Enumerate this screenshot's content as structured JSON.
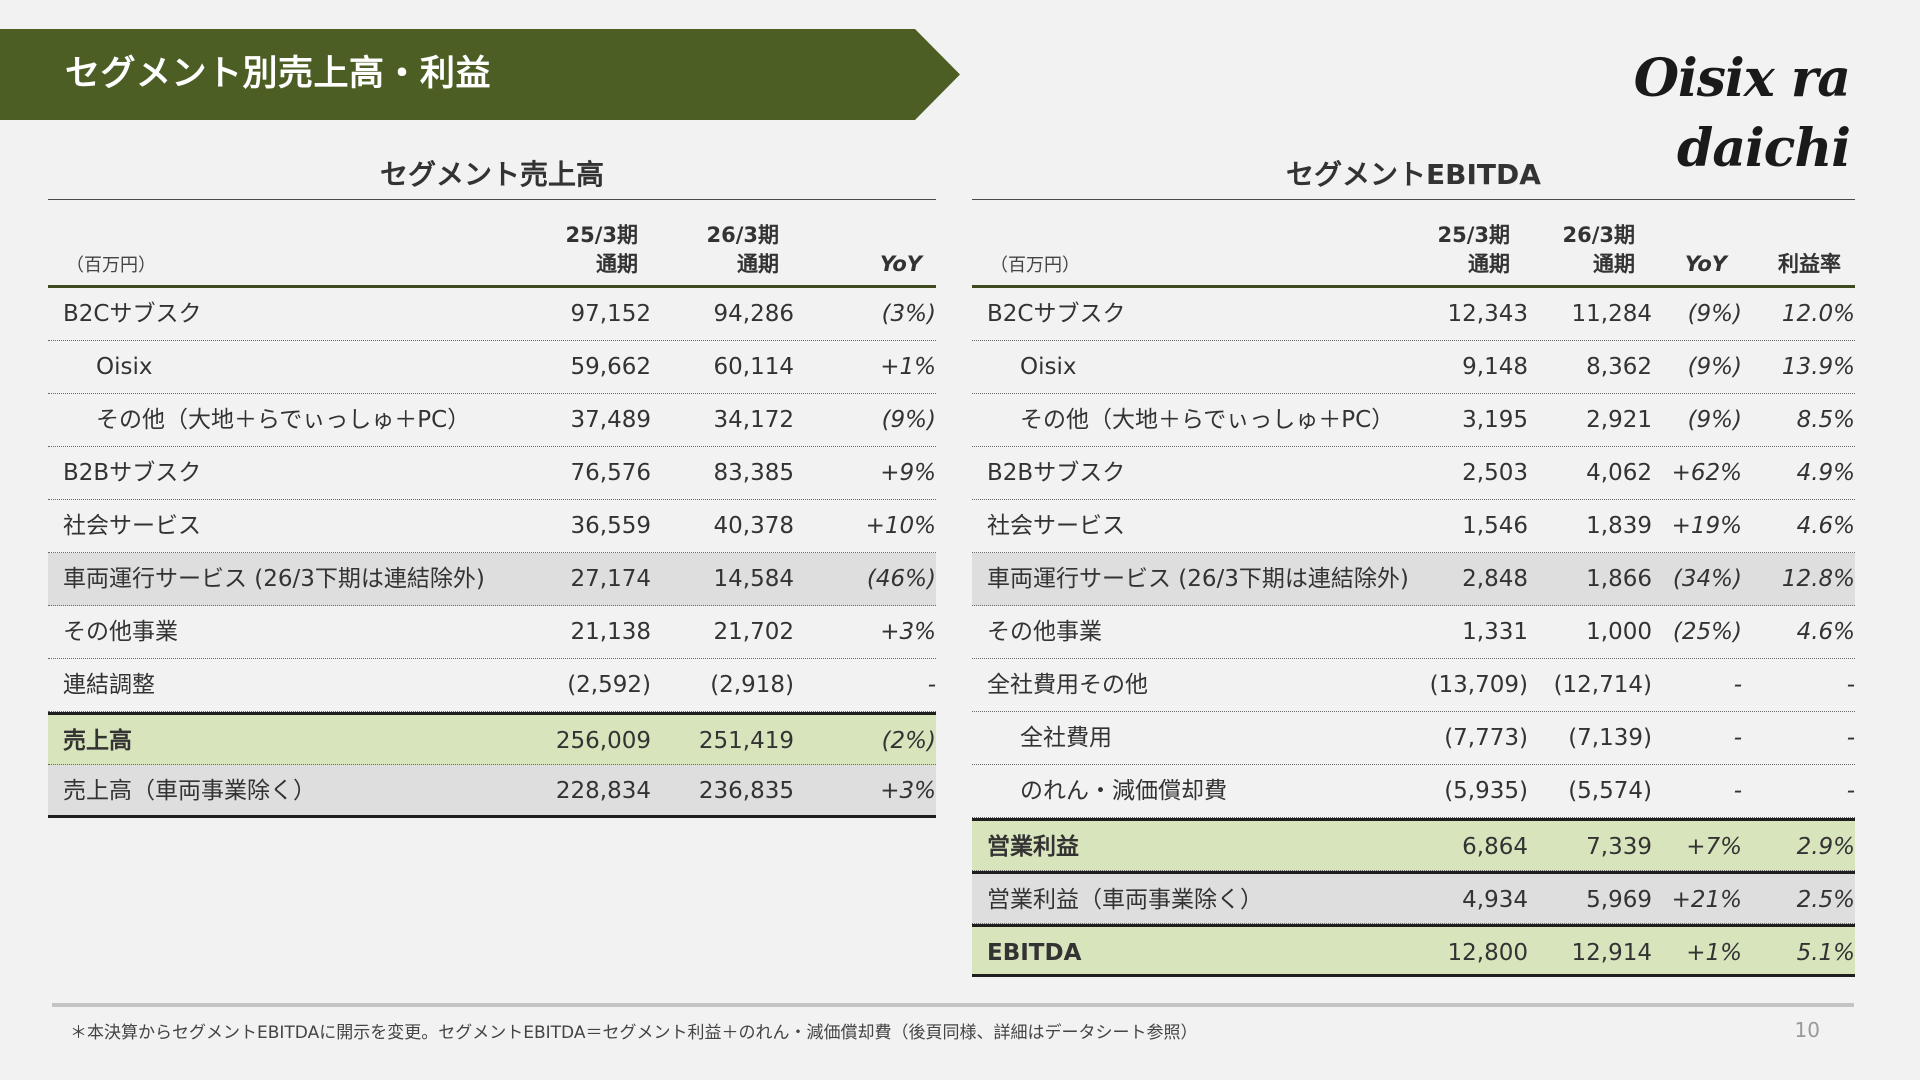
{
  "header": {
    "title": "セグメント別売上高・利益",
    "logo_text": "Oisix ra daichi"
  },
  "sales": {
    "title": "セグメント売上高",
    "unit": "（百万円）",
    "col1_line1": "25/3期",
    "col1_line2": "通期",
    "col2_line1": "26/3期",
    "col2_line2": "通期",
    "col3": "YoY",
    "rows": [
      {
        "label": "B2Cサブスク",
        "v1": "97,152",
        "v2": "94,286",
        "yoy": "(3%)"
      },
      {
        "label": "Oisix",
        "v1": "59,662",
        "v2": "60,114",
        "yoy": "+1%"
      },
      {
        "label": "その他（大地＋らでぃっしゅ＋PC）",
        "v1": "37,489",
        "v2": "34,172",
        "yoy": "(9%)"
      },
      {
        "label": "B2Bサブスク",
        "v1": "76,576",
        "v2": "83,385",
        "yoy": "+9%"
      },
      {
        "label": "社会サービス",
        "v1": "36,559",
        "v2": "40,378",
        "yoy": "+10%"
      },
      {
        "label": "車両運行サービス (26/3下期は連結除外)",
        "v1": "27,174",
        "v2": "14,584",
        "yoy": "(46%)"
      },
      {
        "label": "その他事業",
        "v1": "21,138",
        "v2": "21,702",
        "yoy": "+3%"
      },
      {
        "label": "連結調整",
        "v1": "(2,592)",
        "v2": "(2,918)",
        "yoy": "-"
      },
      {
        "label": "売上高",
        "v1": "256,009",
        "v2": "251,419",
        "yoy": "(2%)"
      },
      {
        "label": "売上高（車両事業除く）",
        "v1": "228,834",
        "v2": "236,835",
        "yoy": "+3%"
      }
    ]
  },
  "ebitda": {
    "title": "セグメントEBITDA",
    "unit": "（百万円）",
    "col1_line1": "25/3期",
    "col1_line2": "通期",
    "col2_line1": "26/3期",
    "col2_line2": "通期",
    "col3": "YoY",
    "col4": "利益率",
    "rows": [
      {
        "label": "B2Cサブスク",
        "v1": "12,343",
        "v2": "11,284",
        "yoy": "(9%)",
        "margin": "12.0%"
      },
      {
        "label": "Oisix",
        "v1": "9,148",
        "v2": "8,362",
        "yoy": "(9%)",
        "margin": "13.9%"
      },
      {
        "label": "その他（大地＋らでぃっしゅ＋PC）",
        "v1": "3,195",
        "v2": "2,921",
        "yoy": "(9%)",
        "margin": "8.5%"
      },
      {
        "label": "B2Bサブスク",
        "v1": "2,503",
        "v2": "4,062",
        "yoy": "+62%",
        "margin": "4.9%"
      },
      {
        "label": "社会サービス",
        "v1": "1,546",
        "v2": "1,839",
        "yoy": "+19%",
        "margin": "4.6%"
      },
      {
        "label": "車両運行サービス (26/3下期は連結除外)",
        "v1": "2,848",
        "v2": "1,866",
        "yoy": "(34%)",
        "margin": "12.8%"
      },
      {
        "label": "その他事業",
        "v1": "1,331",
        "v2": "1,000",
        "yoy": "(25%)",
        "margin": "4.6%"
      },
      {
        "label": "全社費用その他",
        "v1": "(13,709)",
        "v2": "(12,714)",
        "yoy": "-",
        "margin": "-"
      },
      {
        "label": "全社費用",
        "v1": "(7,773)",
        "v2": "(7,139)",
        "yoy": "-",
        "margin": "-"
      },
      {
        "label": "のれん・減価償却費",
        "v1": "(5,935)",
        "v2": "(5,574)",
        "yoy": "-",
        "margin": "-"
      },
      {
        "label": "営業利益",
        "v1": "6,864",
        "v2": "7,339",
        "yoy": "+7%",
        "margin": "2.9%"
      },
      {
        "label": "営業利益（車両事業除く）",
        "v1": "4,934",
        "v2": "5,969",
        "yoy": "+21%",
        "margin": "2.5%"
      },
      {
        "label": "EBITDA",
        "v1": "12,800",
        "v2": "12,914",
        "yoy": "+1%",
        "margin": "5.1%"
      }
    ]
  },
  "footer": {
    "note": "＊本決算からセグメントEBITDAに開示を変更。セグメントEBITDA＝セグメント利益＋のれん・減価償却費（後頁同様、詳細はデータシート参照）",
    "page": "10"
  }
}
